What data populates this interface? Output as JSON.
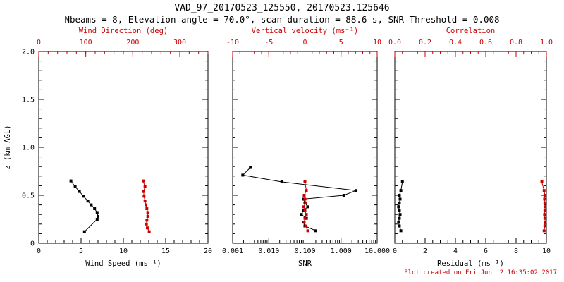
{
  "colors": {
    "foreground": "#000000",
    "accent": "#cc0000",
    "background": "#ffffff"
  },
  "chart_data": {
    "type": "line",
    "title": "VAD_97_20170523_125550, 20170523.125646",
    "subtitle": "Nbeams = 8, Elevation angle = 70.0°, scan duration = 88.6 s, SNR Threshold = 0.008",
    "created_note": "Plot created on Fri Jun  2 16:35:02 2017",
    "grid": false,
    "legend": "none",
    "y_axis": {
      "label": "z (km AGL)",
      "range": [
        0,
        2
      ],
      "minor_step": 0.1,
      "ticks": [
        {
          "v": 0,
          "t": "0"
        },
        {
          "v": 0.5,
          "t": "0.5"
        },
        {
          "v": 1.0,
          "t": "1.0"
        },
        {
          "v": 1.5,
          "t": "1.5"
        },
        {
          "v": 2.0,
          "t": "2.0"
        }
      ]
    },
    "panels": [
      {
        "name": "wind",
        "show_y_labels": true,
        "bottom_axis": {
          "label": "Wind Speed (ms⁻¹)",
          "range": [
            0,
            20
          ],
          "log": false,
          "minor_step": 1,
          "ticks": [
            {
              "v": 0,
              "t": "0"
            },
            {
              "v": 5,
              "t": "5"
            },
            {
              "v": 10,
              "t": "10"
            },
            {
              "v": 15,
              "t": "15"
            },
            {
              "v": 20,
              "t": "20"
            }
          ]
        },
        "top_axis": {
          "label": "Wind Direction (deg)",
          "range": [
            0,
            360
          ],
          "log": false,
          "minor_step": 20,
          "ticks": [
            {
              "v": 0,
              "t": "0"
            },
            {
              "v": 100,
              "t": "100"
            },
            {
              "v": 200,
              "t": "200"
            },
            {
              "v": 300,
              "t": "300"
            }
          ]
        },
        "series": [
          {
            "name": "wind-speed",
            "axis": "bottom",
            "color": "foreground",
            "z": [
              0.12,
              0.25,
              0.28,
              0.32,
              0.36,
              0.4,
              0.44,
              0.49,
              0.54,
              0.59,
              0.65
            ],
            "values": [
              5.4,
              6.9,
              7.0,
              6.9,
              6.6,
              6.2,
              5.8,
              5.3,
              4.8,
              4.3,
              3.8
            ]
          },
          {
            "name": "wind-direction",
            "axis": "top",
            "color": "accent",
            "z": [
              0.12,
              0.16,
              0.2,
              0.24,
              0.28,
              0.32,
              0.36,
              0.4,
              0.44,
              0.49,
              0.54,
              0.59,
              0.65
            ],
            "values": [
              235,
              231,
              229,
              230,
              232,
              232,
              230,
              228,
              226,
              224,
              223,
              226,
              222
            ]
          }
        ]
      },
      {
        "name": "snr",
        "show_y_labels": false,
        "bottom_axis": {
          "label": "SNR",
          "range": [
            0.001,
            10
          ],
          "log": true,
          "ticks": [
            {
              "v": 0.001,
              "t": "0.001"
            },
            {
              "v": 0.01,
              "t": "0.010"
            },
            {
              "v": 0.1,
              "t": "0.100"
            },
            {
              "v": 1,
              "t": "1.000"
            },
            {
              "v": 10,
              "t": "10.000"
            }
          ]
        },
        "top_axis": {
          "label": "Vertical velocity (ms⁻¹)",
          "range": [
            -10,
            10
          ],
          "log": false,
          "minor_step": 1,
          "ticks": [
            {
              "v": -10,
              "t": "-10"
            },
            {
              "v": -5,
              "t": "-5"
            },
            {
              "v": 0,
              "t": "0"
            },
            {
              "v": 5,
              "t": "5"
            },
            {
              "v": 10,
              "t": "10"
            }
          ]
        },
        "ref_line": {
          "axis": "top",
          "value": 0,
          "style": "dotted",
          "color": "accent"
        },
        "series": [
          {
            "name": "snr",
            "axis": "bottom",
            "color": "foreground",
            "z": [
              0.13,
              0.18,
              0.22,
              0.26,
              0.3,
              0.34,
              0.38,
              0.42,
              0.46,
              0.5,
              0.55,
              0.64,
              0.71,
              0.79
            ],
            "values": [
              0.2,
              0.1,
              0.09,
              0.11,
              0.08,
              0.09,
              0.12,
              0.1,
              0.09,
              1.2,
              2.6,
              0.023,
              0.0019,
              0.0031
            ]
          },
          {
            "name": "vertical-velocity",
            "axis": "top",
            "color": "accent",
            "z": [
              0.13,
              0.18,
              0.22,
              0.26,
              0.3,
              0.34,
              0.38,
              0.42,
              0.46,
              0.5,
              0.55,
              0.64
            ],
            "values": [
              0.4,
              0.1,
              -0.1,
              0.0,
              0.2,
              0.0,
              -0.2,
              0.1,
              0.0,
              -0.1,
              0.2,
              0.0
            ]
          }
        ]
      },
      {
        "name": "residual",
        "show_y_labels": false,
        "bottom_axis": {
          "label": "Residual (ms⁻¹)",
          "range": [
            0,
            10
          ],
          "log": false,
          "minor_step": 0.5,
          "ticks": [
            {
              "v": 0,
              "t": "0"
            },
            {
              "v": 2,
              "t": "2"
            },
            {
              "v": 4,
              "t": "4"
            },
            {
              "v": 6,
              "t": "6"
            },
            {
              "v": 8,
              "t": "8"
            },
            {
              "v": 10,
              "t": "10"
            }
          ]
        },
        "top_axis": {
          "label": "Correlation",
          "range": [
            0,
            1
          ],
          "log": false,
          "minor_step": 0.05,
          "ticks": [
            {
              "v": 0.0,
              "t": "0.0"
            },
            {
              "v": 0.2,
              "t": "0.2"
            },
            {
              "v": 0.4,
              "t": "0.4"
            },
            {
              "v": 0.6,
              "t": "0.6"
            },
            {
              "v": 0.8,
              "t": "0.8"
            },
            {
              "v": 1.0,
              "t": "1.0"
            }
          ]
        },
        "series": [
          {
            "name": "residual",
            "axis": "bottom",
            "color": "foreground",
            "z": [
              0.13,
              0.18,
              0.22,
              0.26,
              0.3,
              0.34,
              0.38,
              0.42,
              0.46,
              0.5,
              0.55,
              0.64
            ],
            "values": [
              0.4,
              0.3,
              0.25,
              0.3,
              0.35,
              0.3,
              0.25,
              0.3,
              0.35,
              0.3,
              0.4,
              0.5
            ]
          },
          {
            "name": "correlation",
            "axis": "top",
            "color": "accent",
            "z": [
              0.13,
              0.18,
              0.22,
              0.26,
              0.3,
              0.34,
              0.38,
              0.42,
              0.46,
              0.5,
              0.55,
              0.64
            ],
            "values": [
              0.985,
              0.99,
              0.992,
              0.99,
              0.988,
              0.99,
              0.992,
              0.99,
              0.988,
              0.99,
              0.985,
              0.97
            ]
          }
        ]
      }
    ]
  }
}
